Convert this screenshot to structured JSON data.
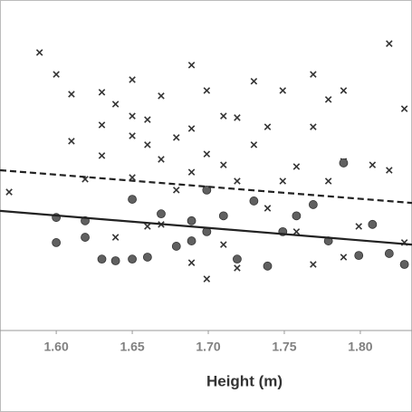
{
  "chart_data": {
    "type": "scatter",
    "x_label": "Height (m)",
    "xlim": [
      1.563,
      1.834
    ],
    "xticks": [
      {
        "value": 1.6,
        "label": "1.60"
      },
      {
        "value": 1.65,
        "label": "1.65"
      },
      {
        "value": 1.7,
        "label": "1.70"
      },
      {
        "value": 1.75,
        "label": "1.75"
      },
      {
        "value": 1.8,
        "label": "1.80"
      }
    ],
    "ylim": [
      0,
      100
    ],
    "series": [
      {
        "marker": "cross",
        "color": "#333333",
        "x": [
          1.569,
          1.589,
          1.6,
          1.61,
          1.61,
          1.619,
          1.63,
          1.63,
          1.63,
          1.639,
          1.639,
          1.65,
          1.65,
          1.65,
          1.65,
          1.66,
          1.66,
          1.66,
          1.669,
          1.669,
          1.669,
          1.679,
          1.679,
          1.689,
          1.689,
          1.689,
          1.689,
          1.699,
          1.699,
          1.699,
          1.71,
          1.71,
          1.71,
          1.719,
          1.719,
          1.719,
          1.73,
          1.73,
          1.739,
          1.739,
          1.749,
          1.749,
          1.758,
          1.758,
          1.769,
          1.769,
          1.769,
          1.779,
          1.779,
          1.789,
          1.789,
          1.789,
          1.799,
          1.808,
          1.819,
          1.819,
          1.829,
          1.829
        ],
        "values": [
          41.9,
          84.1,
          77.5,
          71.5,
          57.3,
          45.8,
          72.1,
          62.2,
          52.9,
          68.5,
          28.2,
          75.9,
          64.9,
          58.9,
          46.3,
          63.8,
          56.2,
          31.5,
          71.0,
          51.8,
          32.1,
          58.4,
          42.5,
          80.3,
          61.1,
          47.9,
          20.5,
          72.6,
          53.4,
          15.6,
          64.9,
          50.1,
          26.0,
          64.4,
          45.2,
          18.9,
          75.4,
          56.2,
          61.6,
          37.0,
          72.6,
          45.2,
          49.6,
          29.9,
          77.5,
          61.6,
          20.0,
          69.9,
          45.2,
          72.6,
          51.2,
          22.2,
          31.5,
          50.1,
          86.8,
          48.5,
          67.1,
          26.6
        ]
      },
      {
        "marker": "circle",
        "color": "#606060",
        "x": [
          1.6,
          1.6,
          1.619,
          1.619,
          1.63,
          1.639,
          1.65,
          1.65,
          1.66,
          1.669,
          1.679,
          1.689,
          1.689,
          1.699,
          1.699,
          1.71,
          1.719,
          1.73,
          1.739,
          1.749,
          1.758,
          1.769,
          1.779,
          1.789,
          1.799,
          1.808,
          1.819,
          1.829
        ],
        "values": [
          34.2,
          26.6,
          33.2,
          28.2,
          21.6,
          21.1,
          39.7,
          21.6,
          22.2,
          35.3,
          25.5,
          33.2,
          27.1,
          42.5,
          29.9,
          34.7,
          21.6,
          39.2,
          19.5,
          29.9,
          34.7,
          38.1,
          27.1,
          50.7,
          22.7,
          32.1,
          23.3,
          20.0
        ]
      }
    ],
    "trend_lines": [
      {
        "style": "dashed",
        "color": "#222222",
        "x": [
          1.563,
          1.834
        ],
        "values": [
          48.5,
          38.6
        ]
      },
      {
        "style": "solid",
        "color": "#222222",
        "x": [
          1.563,
          1.834
        ],
        "values": [
          36.2,
          26.0
        ]
      }
    ]
  }
}
